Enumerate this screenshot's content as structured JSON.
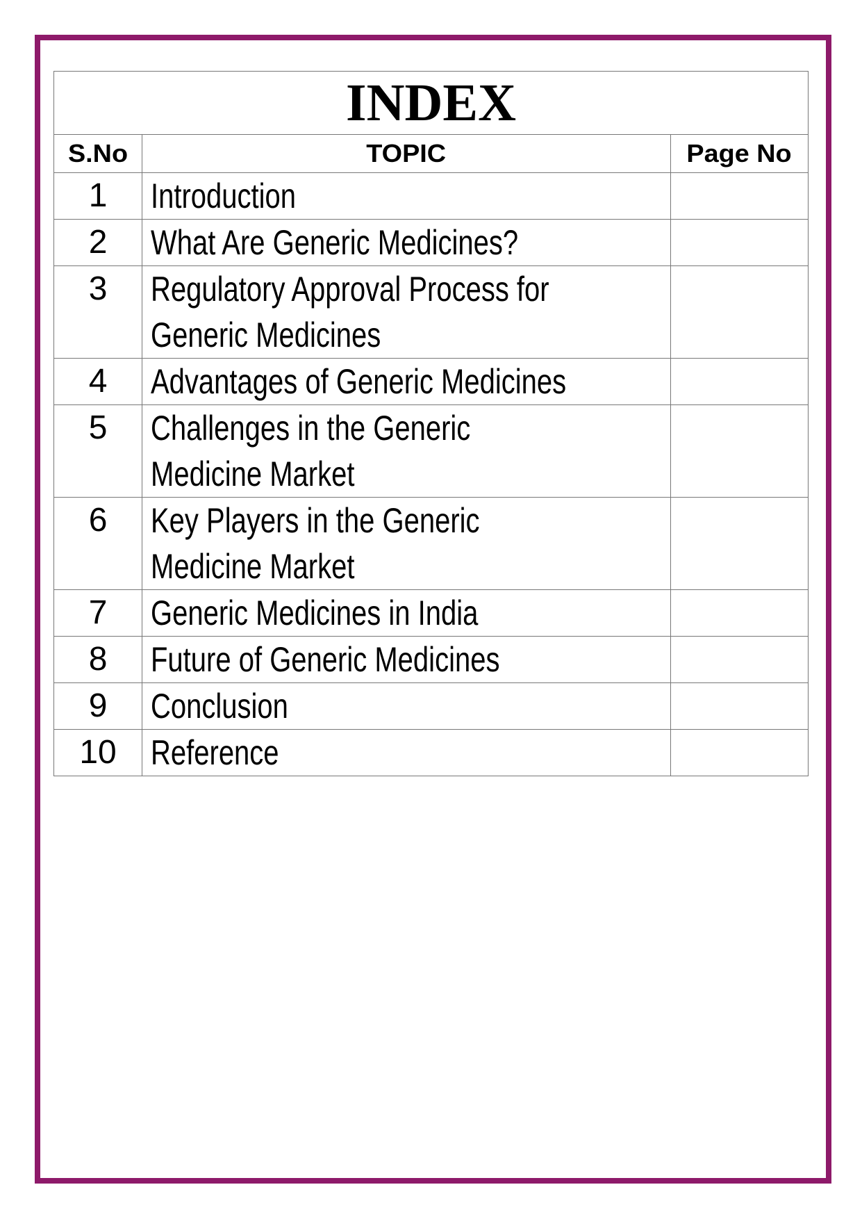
{
  "title": "INDEX",
  "columns": {
    "sno": "S.No",
    "topic": "TOPIC",
    "page": "Page No"
  },
  "frame_color": "#8e1a6a",
  "rows": [
    {
      "sno": "1",
      "lines": [
        "Introduction"
      ],
      "page": ""
    },
    {
      "sno": "2",
      "lines": [
        "What Are Generic Medicines?"
      ],
      "page": ""
    },
    {
      "sno": "3",
      "lines": [
        "Regulatory Approval Process for",
        "Generic Medicines"
      ],
      "page": ""
    },
    {
      "sno": "4",
      "lines": [
        "Advantages of Generic Medicines"
      ],
      "page": ""
    },
    {
      "sno": "5",
      "lines": [
        "Challenges in the Generic",
        "Medicine Market"
      ],
      "page": ""
    },
    {
      "sno": "6",
      "lines": [
        "Key Players in the Generic",
        "Medicine Market"
      ],
      "page": ""
    },
    {
      "sno": "7",
      "lines": [
        "Generic Medicines in India"
      ],
      "page": ""
    },
    {
      "sno": "8",
      "lines": [
        "Future of Generic Medicines"
      ],
      "page": ""
    },
    {
      "sno": "9",
      "lines": [
        "Conclusion"
      ],
      "page": ""
    },
    {
      "sno": "10",
      "lines": [
        "Reference"
      ],
      "page": ""
    }
  ]
}
